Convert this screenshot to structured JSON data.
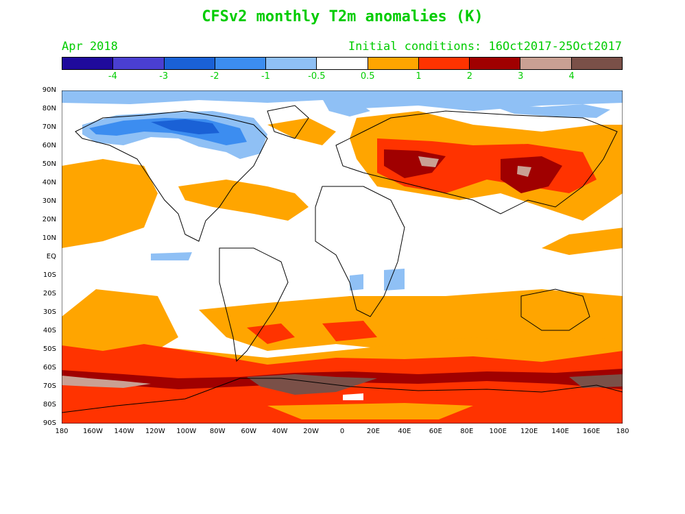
{
  "title": "CFSv2 monthly T2m anomalies (K)",
  "month_label": "Apr 2018",
  "initial_conditions": "Initial conditions: 16Oct2017-25Oct2017",
  "colorbar": {
    "colors": [
      "#1f0a9c",
      "#4a3fd1",
      "#1a61d6",
      "#3c8df0",
      "#8fc0f5",
      "#ffffff",
      "#ffa500",
      "#ff3300",
      "#a00000",
      "#c9a093",
      "#7a5048"
    ],
    "labels": [
      "-4",
      "-3",
      "-2",
      "-1",
      "-0.5",
      "0.5",
      "1",
      "2",
      "3",
      "4"
    ]
  },
  "lat_labels": [
    "90N",
    "80N",
    "70N",
    "60N",
    "50N",
    "40N",
    "30N",
    "20N",
    "10N",
    "EQ",
    "10S",
    "20S",
    "30S",
    "40S",
    "50S",
    "60S",
    "70S",
    "80S",
    "90S"
  ],
  "lon_labels": [
    "180",
    "160W",
    "140W",
    "120W",
    "100W",
    "80W",
    "60W",
    "40W",
    "20W",
    "0",
    "20E",
    "40E",
    "60E",
    "80E",
    "100E",
    "120E",
    "140E",
    "160E",
    "180"
  ]
}
